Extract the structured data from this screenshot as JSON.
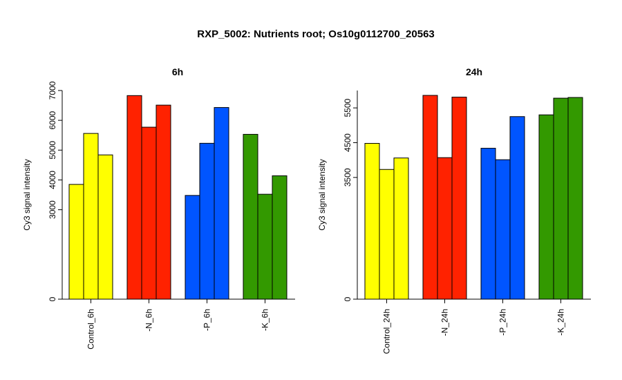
{
  "title": "RXP_5002: Nutrients root; Os10g0112700_20563",
  "chart_data": [
    {
      "type": "bar",
      "title": "6h",
      "ylabel": "Cy3 signal intensity",
      "categories": [
        "Control_6h",
        "-N_6h",
        "-P_6h",
        "-K_6h"
      ],
      "group_colors": [
        "#ffff00",
        "#ff2200",
        "#0055ff",
        "#339900"
      ],
      "values": [
        [
          3850,
          5560,
          4840
        ],
        [
          6830,
          5770,
          6510
        ],
        [
          3480,
          5230,
          6430
        ],
        [
          5530,
          3520,
          4140
        ]
      ],
      "yticks": [
        0,
        3000,
        4000,
        5000,
        6000,
        7000
      ],
      "ylim": [
        0,
        7000
      ]
    },
    {
      "type": "bar",
      "title": "24h",
      "ylabel": "Cy3 signal intensity",
      "categories": [
        "Control_24h",
        "-N_24h",
        "-P_24h",
        "-K_24h"
      ],
      "group_colors": [
        "#ffff00",
        "#ff2200",
        "#0055ff",
        "#339900"
      ],
      "values": [
        [
          4480,
          3730,
          4060
        ],
        [
          5860,
          4070,
          5810
        ],
        [
          4340,
          4010,
          5250
        ],
        [
          5300,
          5780,
          5800
        ]
      ],
      "yticks": [
        0,
        3500,
        4500,
        5500
      ],
      "ylim": [
        0,
        6000
      ]
    }
  ]
}
